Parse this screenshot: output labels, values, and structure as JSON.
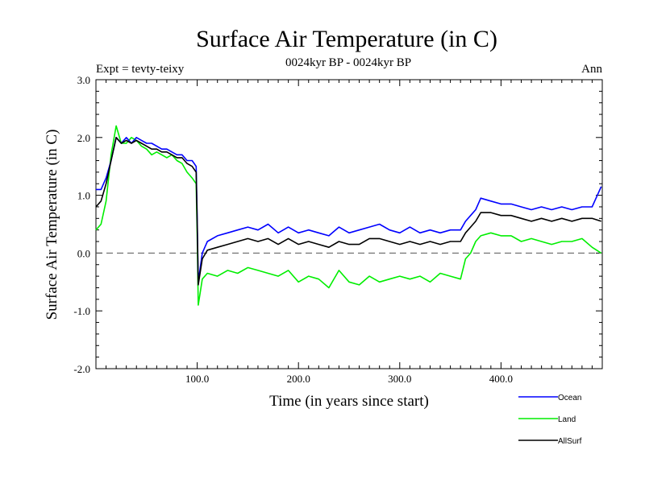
{
  "chart_data": {
    "type": "line",
    "title": "Surface Air Temperature (in C)",
    "subtitle": "0024kyr BP - 0024kyr BP",
    "left_label": "Expt = tevty-teixy",
    "right_label": "Ann",
    "xlabel": "Time (in years since start)",
    "ylabel": "Surface Air Temperature (in C)",
    "xlim": [
      0,
      500
    ],
    "ylim": [
      -2.0,
      3.0
    ],
    "x_ticks": [
      100,
      200,
      300,
      400
    ],
    "x_tick_labels": [
      "100.0",
      "200.0",
      "300.0",
      "400.0"
    ],
    "y_ticks": [
      -2.0,
      -1.0,
      0.0,
      1.0,
      2.0,
      3.0
    ],
    "y_tick_labels": [
      "-2.0",
      "-1.0",
      "0.0",
      "1.0",
      "2.0",
      "3.0"
    ],
    "reference_line": {
      "y": 0.0,
      "style": "dashed"
    },
    "legend_position": "bottom-right, below plot",
    "series": [
      {
        "name": "Ocean",
        "color": "#0000ff",
        "x": [
          0,
          5,
          10,
          15,
          20,
          25,
          30,
          35,
          40,
          45,
          50,
          55,
          60,
          65,
          70,
          75,
          80,
          85,
          90,
          95,
          99,
          100,
          101,
          105,
          110,
          120,
          130,
          140,
          150,
          160,
          170,
          180,
          190,
          200,
          210,
          220,
          230,
          240,
          250,
          260,
          270,
          280,
          290,
          300,
          310,
          320,
          330,
          340,
          350,
          360,
          365,
          370,
          375,
          380,
          390,
          400,
          410,
          420,
          430,
          440,
          450,
          460,
          470,
          480,
          490,
          499
        ],
        "y": [
          1.1,
          1.1,
          1.3,
          1.6,
          2.0,
          1.9,
          2.0,
          1.9,
          2.0,
          1.95,
          1.9,
          1.9,
          1.85,
          1.8,
          1.8,
          1.75,
          1.7,
          1.7,
          1.6,
          1.6,
          1.5,
          0.6,
          -0.5,
          0.0,
          0.2,
          0.3,
          0.35,
          0.4,
          0.45,
          0.4,
          0.5,
          0.35,
          0.45,
          0.35,
          0.4,
          0.35,
          0.3,
          0.45,
          0.35,
          0.4,
          0.45,
          0.5,
          0.4,
          0.35,
          0.45,
          0.35,
          0.4,
          0.35,
          0.4,
          0.4,
          0.55,
          0.65,
          0.75,
          0.95,
          0.9,
          0.85,
          0.85,
          0.8,
          0.75,
          0.8,
          0.75,
          0.8,
          0.75,
          0.8,
          0.8,
          1.15
        ]
      },
      {
        "name": "Land",
        "color": "#00ee00",
        "x": [
          0,
          5,
          10,
          15,
          20,
          25,
          30,
          35,
          40,
          45,
          50,
          55,
          60,
          65,
          70,
          75,
          80,
          85,
          90,
          95,
          99,
          100,
          101,
          105,
          110,
          120,
          130,
          140,
          150,
          160,
          170,
          180,
          190,
          200,
          210,
          220,
          230,
          240,
          250,
          260,
          270,
          280,
          290,
          300,
          310,
          320,
          330,
          340,
          350,
          360,
          365,
          370,
          375,
          380,
          390,
          400,
          410,
          420,
          430,
          440,
          450,
          460,
          470,
          480,
          490,
          499
        ],
        "y": [
          0.4,
          0.5,
          0.9,
          1.7,
          2.2,
          1.9,
          1.9,
          2.0,
          1.95,
          1.85,
          1.8,
          1.7,
          1.75,
          1.7,
          1.65,
          1.7,
          1.6,
          1.55,
          1.4,
          1.3,
          1.2,
          0.3,
          -0.9,
          -0.45,
          -0.35,
          -0.4,
          -0.3,
          -0.35,
          -0.25,
          -0.3,
          -0.35,
          -0.4,
          -0.3,
          -0.5,
          -0.4,
          -0.45,
          -0.6,
          -0.3,
          -0.5,
          -0.55,
          -0.4,
          -0.5,
          -0.45,
          -0.4,
          -0.45,
          -0.4,
          -0.5,
          -0.35,
          -0.4,
          -0.45,
          -0.1,
          0.0,
          0.2,
          0.3,
          0.35,
          0.3,
          0.3,
          0.2,
          0.25,
          0.2,
          0.15,
          0.2,
          0.2,
          0.25,
          0.1,
          0.0
        ]
      },
      {
        "name": "AllSurf",
        "color": "#000000",
        "x": [
          0,
          5,
          10,
          15,
          20,
          25,
          30,
          35,
          40,
          45,
          50,
          55,
          60,
          65,
          70,
          75,
          80,
          85,
          90,
          95,
          99,
          100,
          101,
          105,
          110,
          120,
          130,
          140,
          150,
          160,
          170,
          180,
          190,
          200,
          210,
          220,
          230,
          240,
          250,
          260,
          270,
          280,
          290,
          300,
          310,
          320,
          330,
          340,
          350,
          360,
          365,
          370,
          375,
          380,
          390,
          400,
          410,
          420,
          430,
          440,
          450,
          460,
          470,
          480,
          490,
          499
        ],
        "y": [
          0.8,
          0.9,
          1.2,
          1.6,
          2.0,
          1.9,
          1.95,
          1.9,
          1.95,
          1.9,
          1.85,
          1.8,
          1.8,
          1.75,
          1.75,
          1.7,
          1.65,
          1.65,
          1.55,
          1.5,
          1.4,
          0.5,
          -0.55,
          -0.1,
          0.05,
          0.1,
          0.15,
          0.2,
          0.25,
          0.2,
          0.25,
          0.15,
          0.25,
          0.15,
          0.2,
          0.15,
          0.1,
          0.2,
          0.15,
          0.15,
          0.25,
          0.25,
          0.2,
          0.15,
          0.2,
          0.15,
          0.2,
          0.15,
          0.2,
          0.2,
          0.35,
          0.45,
          0.55,
          0.7,
          0.7,
          0.65,
          0.65,
          0.6,
          0.55,
          0.6,
          0.55,
          0.6,
          0.55,
          0.6,
          0.6,
          0.55
        ]
      }
    ]
  }
}
